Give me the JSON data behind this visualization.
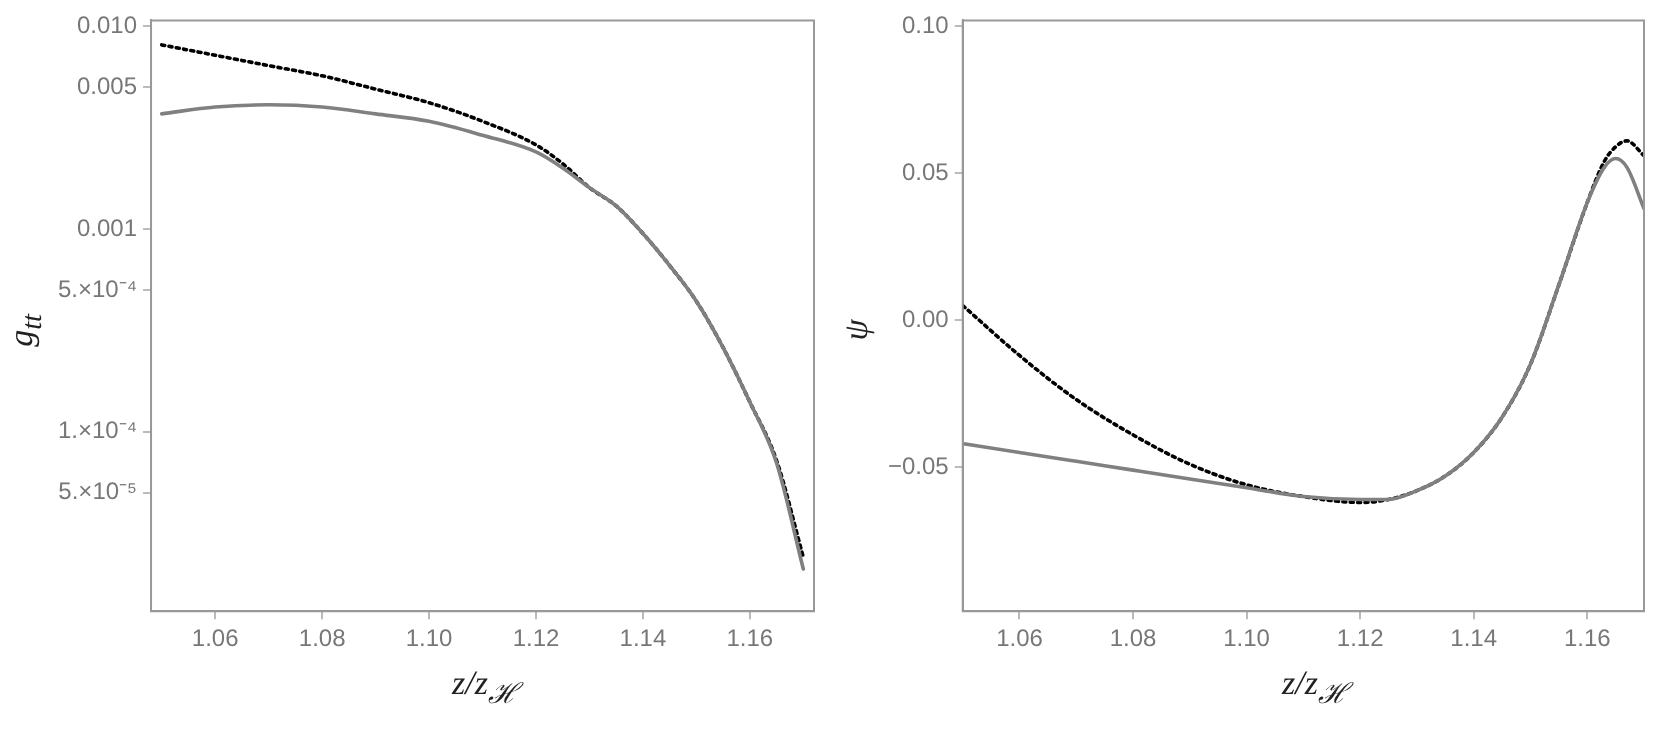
{
  "chart_data": [
    {
      "type": "line",
      "xlabel": "z/z$_{ℋ}$",
      "ylabel": "g$_{tt}$",
      "log": "y",
      "grid": false,
      "legend": false,
      "marker": "none",
      "xlim": [
        1.048,
        1.172
      ],
      "xticks": [
        1.06,
        1.08,
        {
          "value": 1.1,
          "label": "1.10"
        },
        1.12,
        1.14,
        1.16
      ],
      "ylim": [
        1.3e-05,
        0.0107
      ],
      "yticks": [
        {
          "value": 0.01,
          "label": "0.010"
        },
        0.005,
        0.001,
        {
          "value": 0.0005,
          "label": "5.×10⁻⁴"
        },
        {
          "value": 0.0001,
          "label": "1.×10⁻⁴"
        },
        {
          "value": 5e-05,
          "label": "5.×10⁻⁵"
        }
      ],
      "x": [
        1.05,
        1.06,
        1.07,
        1.08,
        1.09,
        1.1,
        1.11,
        1.12,
        1.125,
        1.13,
        1.135,
        1.14,
        1.145,
        1.15,
        1.155,
        1.16,
        1.165,
        1.17
      ],
      "series": [
        {
          "color": "#808080",
          "line_style": "solid",
          "values": [
            0.0037,
            0.004,
            0.0041,
            0.004,
            0.0037,
            0.0034,
            0.0029,
            0.0024,
            0.002,
            0.0016,
            0.0013,
            0.00095,
            0.00066,
            0.00044,
            0.00026,
            0.00014,
            7e-05,
            2.1e-05
          ]
        },
        {
          "color": "#000000",
          "line_style": "dotted",
          "values": [
            0.0081,
            0.0072,
            0.0064,
            0.0057,
            0.0049,
            0.0042,
            0.0034,
            0.0026,
            0.0021,
            0.0016,
            0.0013,
            0.00095,
            0.00066,
            0.00044,
            0.00026,
            0.00014,
            7.2e-05,
            2.4e-05
          ]
        }
      ]
    },
    {
      "type": "line",
      "xlabel": "z/z$_{ℋ}$",
      "ylabel": "ψ",
      "grid": false,
      "legend": false,
      "marker": "none",
      "xlim": [
        1.05,
        1.17
      ],
      "xticks": [
        1.06,
        1.08,
        {
          "value": 1.1,
          "label": "1.10"
        },
        1.12,
        1.14,
        1.16
      ],
      "ylim": [
        -0.099,
        0.102
      ],
      "yticks": [
        {
          "value": 0.1,
          "label": "0.10"
        },
        0.05,
        {
          "value": 0,
          "label": "0.00"
        },
        {
          "value": -0.05,
          "label": "−0.05"
        }
      ],
      "x": [
        1.05,
        1.06,
        1.07,
        1.08,
        1.09,
        1.1,
        1.11,
        1.12,
        1.125,
        1.13,
        1.135,
        1.14,
        1.145,
        1.15,
        1.155,
        1.16,
        1.163,
        1.165,
        1.167,
        1.17
      ],
      "series": [
        {
          "color": "#808080",
          "line_style": "solid",
          "values": [
            -0.042,
            -0.045,
            -0.048,
            -0.051,
            -0.054,
            -0.057,
            -0.06,
            -0.061,
            -0.061,
            -0.058,
            -0.053,
            -0.045,
            -0.033,
            -0.015,
            0.012,
            0.04,
            0.052,
            0.055,
            0.052,
            0.038
          ]
        },
        {
          "color": "#000000",
          "line_style": "dotted",
          "values": [
            0.005,
            -0.012,
            -0.027,
            -0.039,
            -0.049,
            -0.056,
            -0.06,
            -0.062,
            -0.061,
            -0.058,
            -0.053,
            -0.045,
            -0.033,
            -0.015,
            0.012,
            0.04,
            0.054,
            0.059,
            0.061,
            0.056
          ]
        }
      ]
    }
  ]
}
